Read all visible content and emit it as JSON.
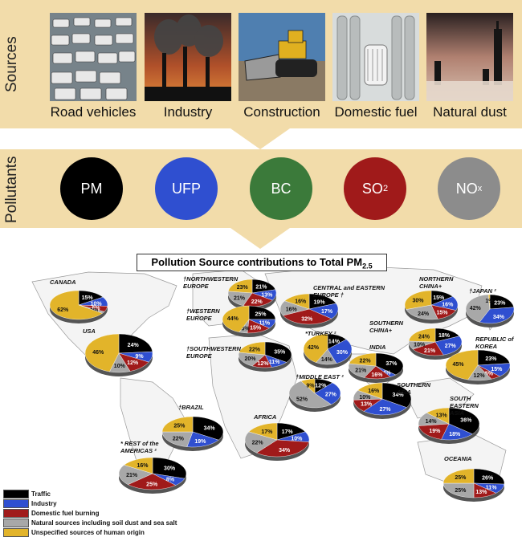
{
  "sources": {
    "band_label": "Sources",
    "items": [
      {
        "label": "Road vehicles"
      },
      {
        "label": "Industry"
      },
      {
        "label": "Construction"
      },
      {
        "label": "Domestic fuel"
      },
      {
        "label": "Natural dust"
      }
    ]
  },
  "pollutants": {
    "band_label": "Pollutants",
    "items": [
      {
        "label": "PM",
        "sub": "",
        "color": "#000000"
      },
      {
        "label": "UFP",
        "sub": "",
        "color": "#2f4fd0"
      },
      {
        "label": "BC",
        "sub": "",
        "color": "#3b7a3a"
      },
      {
        "label": "SO",
        "sub": "2",
        "color": "#a01a1a"
      },
      {
        "label": "NO",
        "sub": "x",
        "color": "#8c8c8c"
      }
    ]
  },
  "map": {
    "title": "Pollution Source contributions to Total PM",
    "title_sub": "2.5"
  },
  "legend": [
    {
      "label": "Traffic",
      "color": "#000000"
    },
    {
      "label": "Industry",
      "color": "#2f4fd0"
    },
    {
      "label": "Domestic fuel burning",
      "color": "#a01a1a"
    },
    {
      "label": "Natural sources including soil dust and sea salt",
      "color": "#a8a8a8"
    },
    {
      "label": "Unspecified sources of human origin",
      "color": "#e2b42a"
    }
  ],
  "regions": [
    {
      "name": "CANADA",
      "slices": [
        15,
        10,
        6,
        2,
        62
      ],
      "labels": [
        "15%",
        "10%",
        "6%",
        "2%",
        "62%"
      ]
    },
    {
      "name": "USA",
      "slices": [
        24,
        9,
        12,
        10,
        46
      ],
      "labels": [
        "24%",
        "9%",
        "12%",
        "10%",
        "46%"
      ]
    },
    {
      "name": "†NORTHWESTERN EUROPE",
      "slices": [
        21,
        13,
        22,
        21,
        23
      ],
      "labels": [
        "21%",
        "13%",
        "22%",
        "21%",
        "23%"
      ]
    },
    {
      "name": "†WESTERN EUROPE",
      "slices": [
        25,
        11,
        15,
        5,
        44
      ],
      "labels": [
        "25%",
        "11%",
        "15%",
        "5%",
        "44%"
      ]
    },
    {
      "name": "†SOUTHWESTERN EUROPE",
      "slices": [
        35,
        11,
        12,
        20,
        22
      ],
      "labels": [
        "35%",
        "11%",
        "12%",
        "20%",
        "22%"
      ]
    },
    {
      "name": "CENTRAL and EASTERN EUROPE †",
      "slices": [
        19,
        17,
        32,
        16,
        16
      ],
      "labels": [
        "19%",
        "17%",
        "32%",
        "16%",
        "16%"
      ]
    },
    {
      "name": "*TURKEY ²",
      "slices": [
        14,
        30,
        0,
        14,
        42
      ],
      "labels": [
        "14%",
        "30%",
        "",
        "14%",
        "42%"
      ]
    },
    {
      "name": "†MIDDLE EAST ²",
      "slices": [
        12,
        27,
        0,
        52,
        9
      ],
      "labels": [
        "12%",
        "27%",
        "",
        "52%",
        "9%"
      ]
    },
    {
      "name": "NORTHERN CHINA+",
      "slices": [
        15,
        16,
        15,
        24,
        30
      ],
      "labels": [
        "15%",
        "16%",
        "15%",
        "24%",
        "30%"
      ]
    },
    {
      "name": "SOUTHERN CHINA+",
      "slices": [
        18,
        27,
        21,
        10,
        24
      ],
      "labels": [
        "18%",
        "27%",
        "21%",
        "10%",
        "24%"
      ]
    },
    {
      "name": "INDIA",
      "slices": [
        37,
        4,
        16,
        21,
        22
      ],
      "labels": [
        "37%",
        "4%",
        "16%",
        "21%",
        "22%"
      ]
    },
    {
      "name": "†JAPAN ²",
      "slices": [
        23,
        34,
        0,
        42,
        1
      ],
      "labels": [
        "23%",
        "34%",
        "",
        "42%",
        "1%"
      ]
    },
    {
      "name": "REPUBLIC of KOREA",
      "slices": [
        23,
        15,
        5,
        12,
        45
      ],
      "labels": [
        "23%",
        "15%",
        "5%",
        "12%",
        "45%"
      ]
    },
    {
      "name": "SOUTHERN ASIA",
      "slices": [
        34,
        27,
        13,
        10,
        16
      ],
      "labels": [
        "34%",
        "27%",
        "13%",
        "10%",
        "16%"
      ]
    },
    {
      "name": "SOUTH EASTERN ASIA",
      "slices": [
        36,
        18,
        19,
        14,
        13
      ],
      "labels": [
        "36%",
        "18%",
        "19%",
        "14%",
        "13%"
      ]
    },
    {
      "name": "AFRICA",
      "slices": [
        17,
        10,
        34,
        22,
        17
      ],
      "labels": [
        "17%",
        "10%",
        "34%",
        "22%",
        "17%"
      ]
    },
    {
      "name": "†BRAZIL",
      "slices": [
        34,
        19,
        0,
        22,
        25
      ],
      "labels": [
        "34%",
        "19%",
        "",
        "22%",
        "25%"
      ]
    },
    {
      "name": "* REST of the AMERICAS ²",
      "slices": [
        30,
        8,
        25,
        21,
        16
      ],
      "labels": [
        "30%",
        "8%",
        "25%",
        "21%",
        "16%"
      ]
    },
    {
      "name": "OCEANIA",
      "slices": [
        26,
        11,
        13,
        25,
        25
      ],
      "labels": [
        "26%",
        "11%",
        "13%",
        "25%",
        "25%"
      ]
    }
  ]
}
